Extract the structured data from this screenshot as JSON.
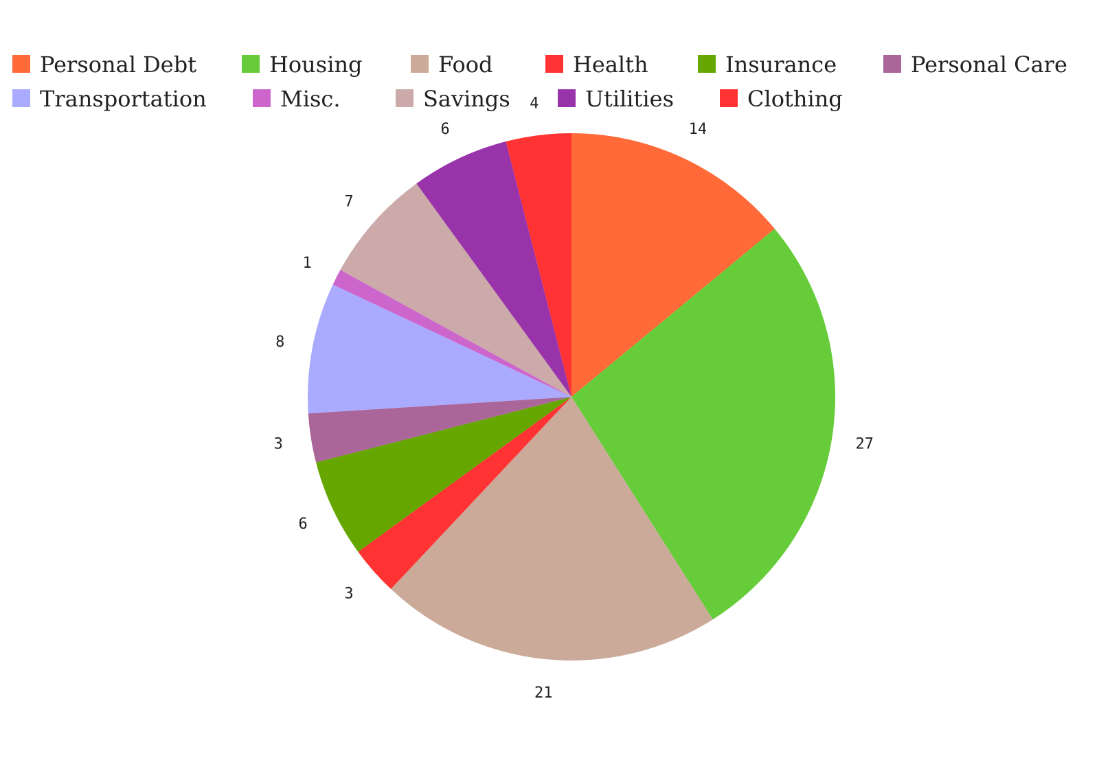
{
  "chart_data": {
    "type": "pie",
    "title": "",
    "legend": {
      "placement": "top",
      "entries": [
        {
          "name": "Personal Debt",
          "color": "#ff6a38"
        },
        {
          "name": "Housing",
          "color": "#66cc3a"
        },
        {
          "name": "Food",
          "color": "#ccaa99"
        },
        {
          "name": "Health",
          "color": "#ff3333"
        },
        {
          "name": "Insurance",
          "color": "#66a600"
        },
        {
          "name": "Personal Care",
          "color": "#aa6699"
        },
        {
          "name": "Transportation",
          "color": "#aaaaff"
        },
        {
          "name": "Misc.",
          "color": "#cc66cc"
        },
        {
          "name": "Savings",
          "color": "#ccaaaa"
        },
        {
          "name": "Utilities",
          "color": "#9933aa"
        },
        {
          "name": "Clothing",
          "color": "#ff3333"
        }
      ]
    },
    "slices": [
      {
        "name": "Personal Debt",
        "value": 14,
        "label": "14",
        "color": "#ff6a38"
      },
      {
        "name": "Housing",
        "value": 27,
        "label": "27",
        "color": "#66cc3a"
      },
      {
        "name": "Food",
        "value": 21,
        "label": "21",
        "color": "#ccaa99"
      },
      {
        "name": "Health",
        "value": 3,
        "label": "3",
        "color": "#ff3333"
      },
      {
        "name": "Insurance",
        "value": 6,
        "label": "6",
        "color": "#66a600"
      },
      {
        "name": "Personal Care",
        "value": 3,
        "label": "3",
        "color": "#aa6699"
      },
      {
        "name": "Transportation",
        "value": 8,
        "label": "8",
        "color": "#aaaaff"
      },
      {
        "name": "Misc.",
        "value": 1,
        "label": "1",
        "color": "#cc66cc"
      },
      {
        "name": "Savings",
        "value": 7,
        "label": "7",
        "color": "#ccaaaa"
      },
      {
        "name": "Utilities",
        "value": 6,
        "label": "6",
        "color": "#9933aa"
      },
      {
        "name": "Clothing",
        "value": 4,
        "label": "4",
        "color": "#ff3333"
      }
    ],
    "start_angle": "12 o'clock",
    "direction": "clockwise"
  }
}
